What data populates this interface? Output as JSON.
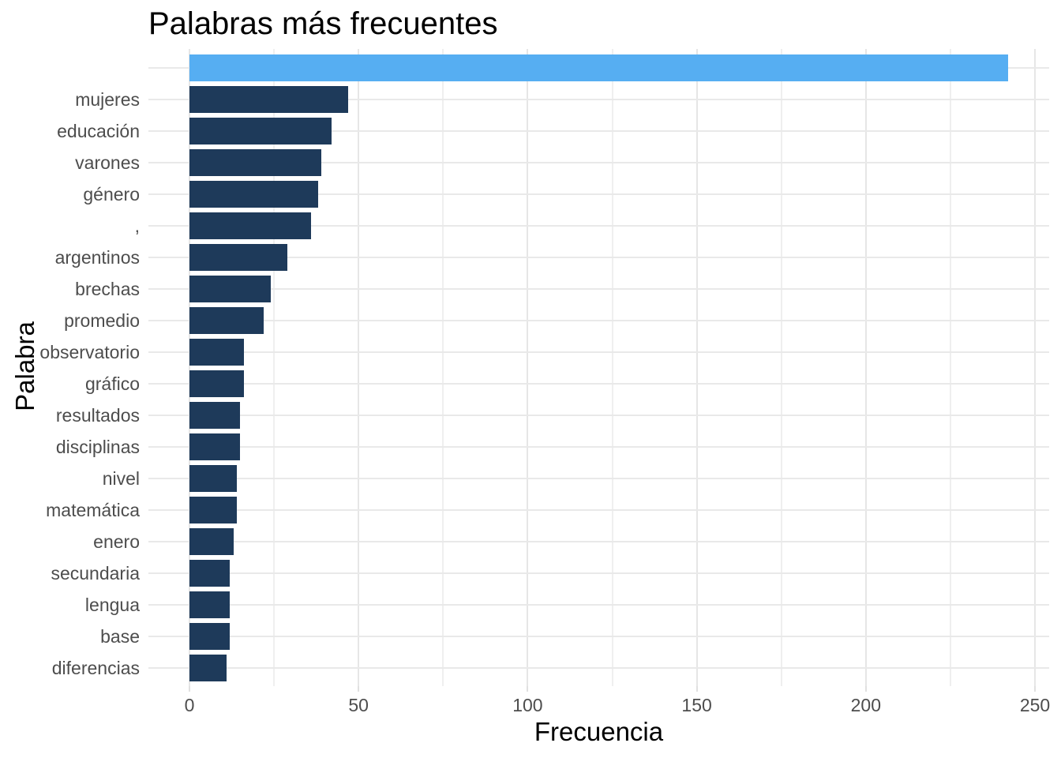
{
  "chart_data": {
    "type": "bar",
    "orientation": "horizontal",
    "title": "Palabras más frecuentes",
    "xlabel": "Frecuencia",
    "ylabel": "Palabra",
    "categories": [
      "",
      "mujeres",
      "educación",
      "varones",
      "género",
      ",",
      "argentinos",
      "brechas",
      "promedio",
      "observatorio",
      "gráfico",
      "resultados",
      "disciplinas",
      "nivel",
      "matemática",
      "enero",
      "secundaria",
      "lengua",
      "base",
      "diferencias"
    ],
    "values": [
      242,
      47,
      42,
      39,
      38,
      36,
      29,
      24,
      22,
      16,
      16,
      15,
      15,
      14,
      14,
      13,
      12,
      12,
      12,
      11
    ],
    "highlight_index": 0,
    "x_ticks": [
      0,
      50,
      100,
      150,
      200,
      250
    ],
    "x_minor_ticks": [
      25,
      75,
      125,
      175,
      225
    ],
    "xlim": [
      0,
      250
    ],
    "grid": "on",
    "legend": "none",
    "colors": {
      "highlight_bar": "#56AEF2",
      "bar": "#1E3A5A",
      "grid_major": "#E6E6E6",
      "grid_minor": "#EFEFEF",
      "tick_label": "#4D4D4D",
      "title": "#000000",
      "background": "#FFFFFF"
    }
  }
}
